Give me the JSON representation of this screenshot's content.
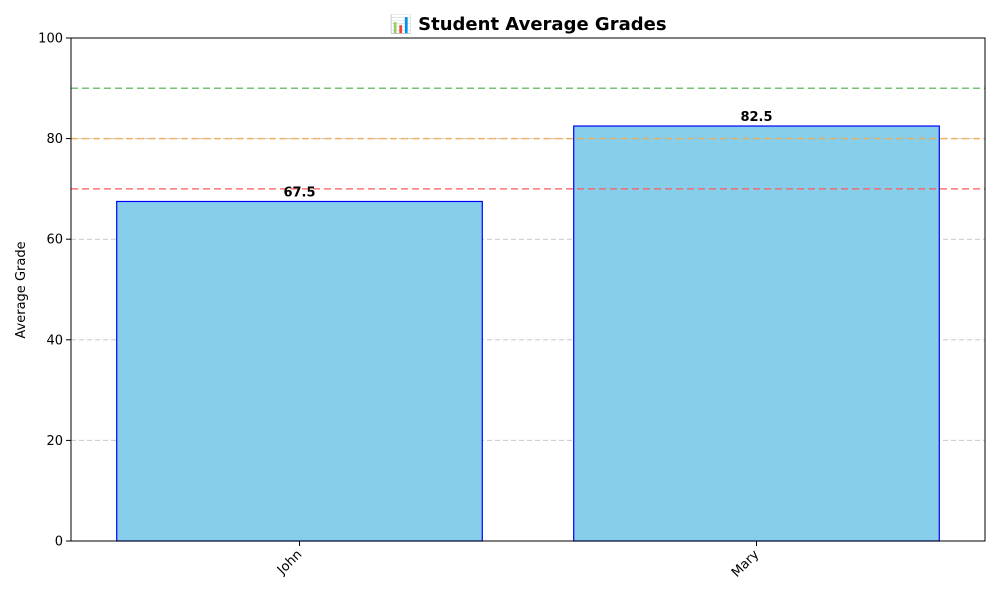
{
  "chart_data": {
    "type": "bar",
    "title": "📊 Student Average Grades",
    "xlabel": "",
    "ylabel": "Average Grade",
    "categories": [
      "John",
      "Mary"
    ],
    "values": [
      67.5,
      82.5
    ],
    "data_labels": [
      "67.5",
      "82.5"
    ],
    "ylim": [
      0,
      100
    ],
    "yticks": [
      0,
      20,
      40,
      60,
      80,
      100
    ],
    "grid": "y-axis dashed",
    "reference_lines": [
      {
        "y": 90,
        "color": "#5cb85c"
      },
      {
        "y": 80,
        "color": "#f0ad4e"
      },
      {
        "y": 70,
        "color": "#ff5c5c"
      }
    ],
    "bar_color": "#87ceeb",
    "bar_edge_color": "#0000ff",
    "grid_color": "#c8c8c8"
  }
}
